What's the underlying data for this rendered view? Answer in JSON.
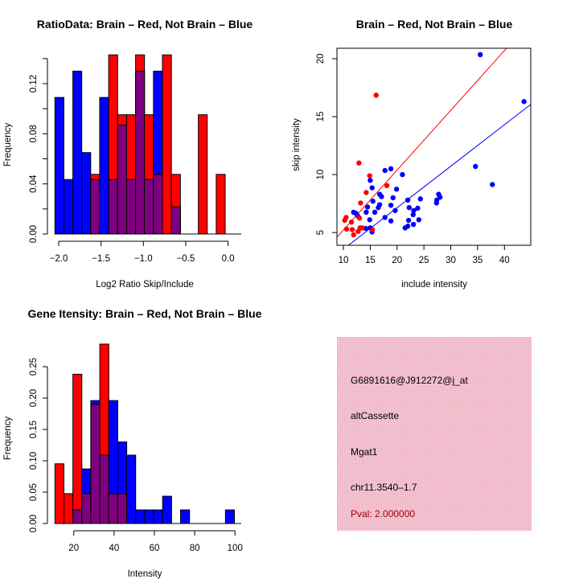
{
  "colors": {
    "red": "#ff0000",
    "blue": "#0000ff",
    "purple": "#7f007f",
    "info_bg": "#f2bccb",
    "pval": "#a00000"
  },
  "chart_data": [
    {
      "type": "bar",
      "id": "ratio_hist",
      "title": "RatioData: Brain – Red, Not Brain – Blue",
      "xlabel": "Log2 Ratio Skip/Include",
      "ylabel": "Frequency",
      "breaks": [
        -2.045,
        -1.939,
        -1.833,
        -1.728,
        -1.622,
        -1.516,
        -1.41,
        -1.304,
        -1.198,
        -1.092,
        -0.987,
        -0.881,
        -0.775,
        -0.669,
        -0.563,
        -0.457,
        -0.351,
        -0.246,
        -0.14,
        -0.034,
        0.073
      ],
      "series": [
        {
          "name": "Not Brain",
          "color": "blue",
          "values": [
            0.109,
            0.0435,
            0.13,
            0.065,
            0.0435,
            0.109,
            0.0435,
            0.087,
            0.0435,
            0.13,
            0.0435,
            0.13,
            0,
            0.0217,
            0,
            0,
            0,
            0,
            0,
            0
          ]
        },
        {
          "name": "Brain",
          "color": "red",
          "values": [
            0,
            0,
            0,
            0,
            0.0476,
            0,
            0.143,
            0.0952,
            0.0952,
            0.143,
            0.0952,
            0.0476,
            0.143,
            0.0476,
            0,
            0,
            0.0952,
            0,
            0.0476,
            0
          ]
        }
      ],
      "xticks": [
        -2.0,
        -1.5,
        -1.0,
        -0.5,
        0.0
      ],
      "xtick_labels": [
        "−2.0",
        "−1.5",
        "−1.0",
        "−0.5",
        "0.0"
      ],
      "yticks": [
        0,
        0.02,
        0.04,
        0.06,
        0.08,
        0.1,
        0.12,
        0.14
      ],
      "ytick_labels": [
        "0.00",
        "",
        "0.04",
        "",
        "0.08",
        "",
        "0.12",
        ""
      ],
      "ylim": [
        0,
        0.14
      ]
    },
    {
      "type": "scatter",
      "id": "intensity_scatter",
      "title": "Brain – Red, Not Brain – Blue",
      "xlabel": "include intensity",
      "ylabel": "skip intensity",
      "xlim": [
        8.8,
        44.9
      ],
      "ylim": [
        3.9,
        20.9
      ],
      "xticks": [
        10,
        15,
        20,
        25,
        30,
        35,
        40
      ],
      "xtick_labels": [
        "10",
        "15",
        "20",
        "25",
        "30",
        "35",
        "40"
      ],
      "yticks": [
        5,
        10,
        15,
        20
      ],
      "ytick_labels": [
        "5",
        "10",
        "15",
        "20"
      ],
      "series": [
        {
          "name": "Not Brain",
          "color": "blue",
          "fit": {
            "slope": 0.358,
            "intercept": -0.02
          },
          "points": [
            [
              35.5,
              20.35
            ],
            [
              43.65,
              16.3
            ],
            [
              34.6,
              10.7
            ],
            [
              37.75,
              9.14
            ],
            [
              17.75,
              10.35
            ],
            [
              18.85,
              10.5
            ],
            [
              21,
              10
            ],
            [
              15,
              9.5
            ],
            [
              15.35,
              8.86
            ],
            [
              19.9,
              8.74
            ],
            [
              16.75,
              8.3
            ],
            [
              17.1,
              8.1
            ],
            [
              19.25,
              8.0
            ],
            [
              15.5,
              7.7
            ],
            [
              14.5,
              7.2
            ],
            [
              16.75,
              7.4
            ],
            [
              16.5,
              7.15
            ],
            [
              18.85,
              7.35
            ],
            [
              22,
              7.8
            ],
            [
              24.35,
              7.9
            ],
            [
              27.75,
              8.3
            ],
            [
              28,
              8.05
            ],
            [
              27.4,
              7.8
            ],
            [
              27.35,
              7.55
            ],
            [
              22.25,
              7.15
            ],
            [
              23.85,
              7.1
            ],
            [
              23.1,
              6.9
            ],
            [
              23,
              6.55
            ],
            [
              19.65,
              6.9
            ],
            [
              15.85,
              6.75
            ],
            [
              14.25,
              6.75
            ],
            [
              11.9,
              6.75
            ],
            [
              12.35,
              6.65
            ],
            [
              12.65,
              6.45
            ],
            [
              14.9,
              6.1
            ],
            [
              17.75,
              6.3
            ],
            [
              18.85,
              6.0
            ],
            [
              22.15,
              6.05
            ],
            [
              24.05,
              6.1
            ],
            [
              23.05,
              5.7
            ],
            [
              22,
              5.55
            ],
            [
              21.5,
              5.4
            ],
            [
              14.15,
              5.35
            ],
            [
              15,
              5.4
            ],
            [
              15.35,
              5.05
            ]
          ]
        },
        {
          "name": "Brain",
          "color": "red",
          "fit": {
            "slope": 0.516,
            "intercept": 0.06
          },
          "points": [
            [
              16.1,
              16.85
            ],
            [
              12.9,
              11.0
            ],
            [
              14.9,
              9.9
            ],
            [
              18.1,
              9.05
            ],
            [
              14.25,
              8.45
            ],
            [
              13.2,
              7.55
            ],
            [
              10.5,
              6.3
            ],
            [
              10.25,
              6.05
            ],
            [
              11.5,
              5.9
            ],
            [
              13,
              6.25
            ],
            [
              10.6,
              5.3
            ],
            [
              11.65,
              5.25
            ],
            [
              11.9,
              4.8
            ],
            [
              12.75,
              5.1
            ],
            [
              13.1,
              5.4
            ],
            [
              13.5,
              5.4
            ],
            [
              15.4,
              5.25
            ]
          ]
        }
      ]
    },
    {
      "type": "bar",
      "id": "gene_hist",
      "title": "Gene Itensity: Brain – Red, Not Brain – Blue",
      "xlabel": "Intensity",
      "ylabel": "Frequency",
      "breaks": [
        10.67,
        15.12,
        19.57,
        24.02,
        28.47,
        32.93,
        37.38,
        41.83,
        46.28,
        50.73,
        55.18,
        59.63,
        64.08,
        68.53,
        72.98,
        77.44,
        81.89,
        86.34,
        90.79,
        95.24,
        99.69
      ],
      "series": [
        {
          "name": "Not Brain",
          "color": "blue",
          "values": [
            0,
            0,
            0.0217,
            0.087,
            0.196,
            0.109,
            0.196,
            0.13,
            0.109,
            0.0217,
            0.0217,
            0.0217,
            0.0435,
            0,
            0.0217,
            0,
            0,
            0,
            0,
            0.0217
          ]
        },
        {
          "name": "Brain",
          "color": "red",
          "values": [
            0.0952,
            0.0476,
            0.238,
            0.0476,
            0.19,
            0.286,
            0.0476,
            0.0476,
            0,
            0,
            0,
            0,
            0,
            0,
            0,
            0,
            0,
            0,
            0,
            0
          ]
        }
      ],
      "xticks": [
        20,
        40,
        60,
        80,
        100
      ],
      "xtick_labels": [
        "20",
        "40",
        "60",
        "80",
        "100"
      ],
      "yticks": [
        0,
        0.05,
        0.1,
        0.15,
        0.2,
        0.25
      ],
      "ytick_labels": [
        "0.00",
        "0.05",
        "0.10",
        "0.15",
        "0.20",
        "0.25"
      ],
      "ylim": [
        0,
        0.29
      ]
    }
  ],
  "info": {
    "probe_id": "G6891616@J912272@j_at",
    "event_type": "altCassette",
    "gene": "Mgat1",
    "location": "chr11.3540–1.7",
    "pval": "Pval: 2.000000"
  }
}
